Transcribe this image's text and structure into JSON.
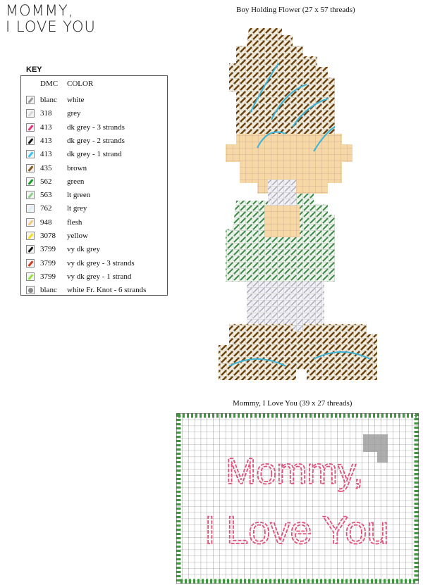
{
  "heading_lines": [
    "MOMMY,",
    "I LOVE YOU"
  ],
  "key": {
    "title": "KEY",
    "headers": {
      "dmc": "DMC",
      "color": "COLOR"
    },
    "rows": [
      {
        "dmc": "blanc",
        "color": "white",
        "swatch": "#9a9a9a"
      },
      {
        "dmc": "318",
        "color": "grey",
        "swatch": "#d8d8d8"
      },
      {
        "dmc": "413",
        "color": "dk grey - 3 strands",
        "swatch": "#e8327a"
      },
      {
        "dmc": "413",
        "color": "dk grey - 2 strands",
        "swatch": "#111111"
      },
      {
        "dmc": "413",
        "color": "dk grey - 1 strand",
        "swatch": "#3cc4e8"
      },
      {
        "dmc": "435",
        "color": "brown",
        "swatch": "#8a5a1a"
      },
      {
        "dmc": "562",
        "color": "green",
        "swatch": "#1a9a2a"
      },
      {
        "dmc": "563",
        "color": "lt green",
        "swatch": "#8ad08a"
      },
      {
        "dmc": "762",
        "color": "lt grey",
        "swatch": "#d8eef2"
      },
      {
        "dmc": "948",
        "color": "flesh",
        "swatch": "#f4c880"
      },
      {
        "dmc": "3078",
        "color": "yellow",
        "swatch": "#f4e020"
      },
      {
        "dmc": "3799",
        "color": "vy dk grey",
        "swatch": "#111111"
      },
      {
        "dmc": "3799",
        "color": "vy dk grey - 3 strands",
        "swatch": "#d03a20"
      },
      {
        "dmc": "3799",
        "color": "vy dk grey - 1 strand",
        "swatch": "#9ae040"
      },
      {
        "dmc": "blanc",
        "color": "white Fr. Knot - 6 strands",
        "swatch": "#888888",
        "knot": true
      }
    ]
  },
  "patterns": [
    {
      "title": "Boy Holding Flower (27 x 57 threads)"
    },
    {
      "title": "Mommy, I Love You (39 x 27 threads)",
      "text_lines": [
        "Mommy,",
        "I Love You"
      ]
    }
  ]
}
